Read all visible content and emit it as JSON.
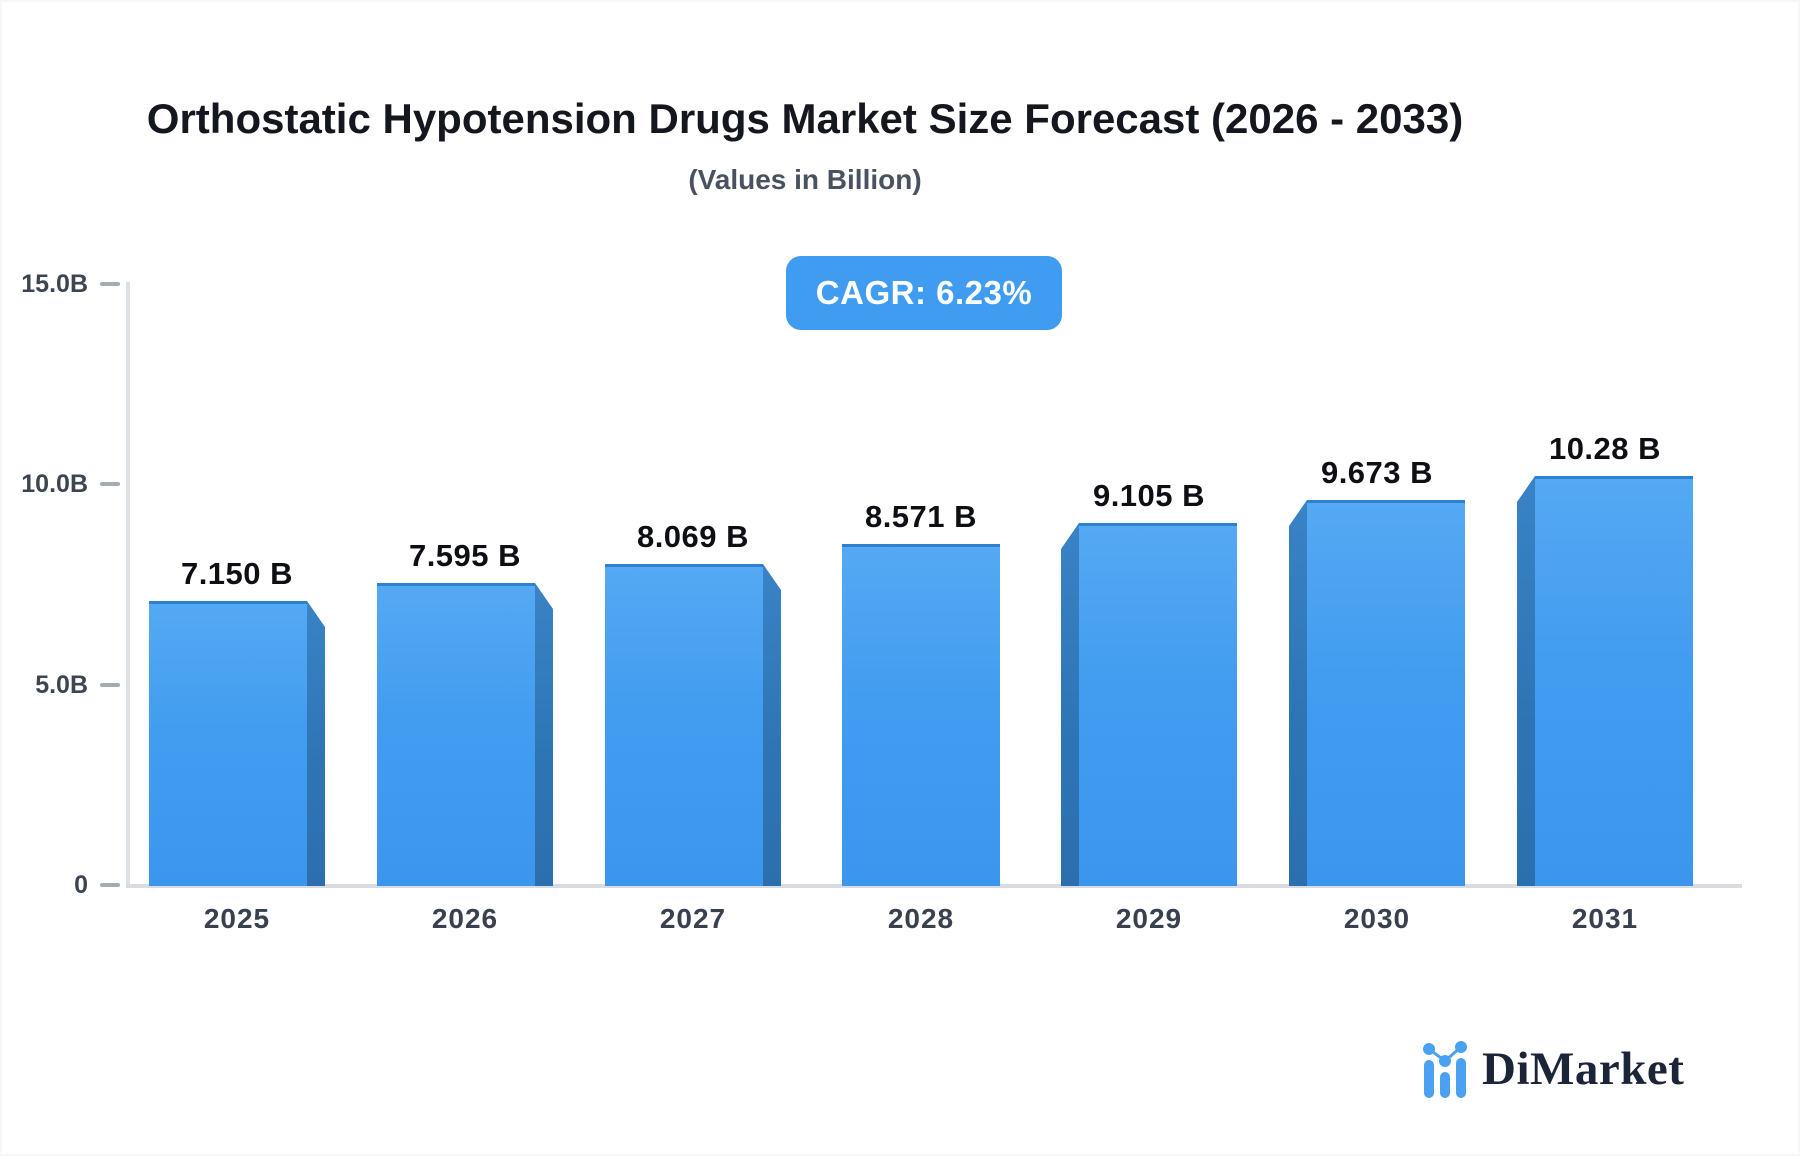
{
  "header": {
    "title": "Orthostatic Hypotension Drugs Market Size Forecast (2026 - 2033)",
    "subtitle": "(Values in Billion)",
    "cagr_label": "CAGR: 6.23%"
  },
  "chart_data": {
    "type": "bar",
    "title": "Orthostatic Hypotension Drugs Market Size Forecast (2026 - 2033)",
    "subtitle": "(Values in Billion)",
    "annotation": "CAGR: 6.23%",
    "categories": [
      "2025",
      "2026",
      "2027",
      "2028",
      "2029",
      "2030",
      "2031"
    ],
    "values": [
      7.15,
      7.595,
      8.069,
      8.571,
      9.105,
      9.673,
      10.28
    ],
    "value_labels": [
      "7.150 B",
      "7.595 B",
      "8.069 B",
      "8.571 B",
      "9.105 B",
      "9.673 B",
      "10.28 B"
    ],
    "xlabel": "",
    "ylabel": "",
    "ylim": [
      0,
      15
    ],
    "y_ticks": [
      {
        "value": 15,
        "label": "15.0B"
      },
      {
        "value": 10,
        "label": "10.0B"
      },
      {
        "value": 5,
        "label": "5.0B"
      },
      {
        "value": 0,
        "label": "0"
      }
    ],
    "grid": false,
    "legend": false,
    "bar_color": "#3f9af0",
    "bar_side_color": "#2e74b5"
  },
  "footer": {
    "brand": "DiMarket",
    "brand_color": "#1c2538",
    "brand_icon_color": "#4aa1f1"
  }
}
